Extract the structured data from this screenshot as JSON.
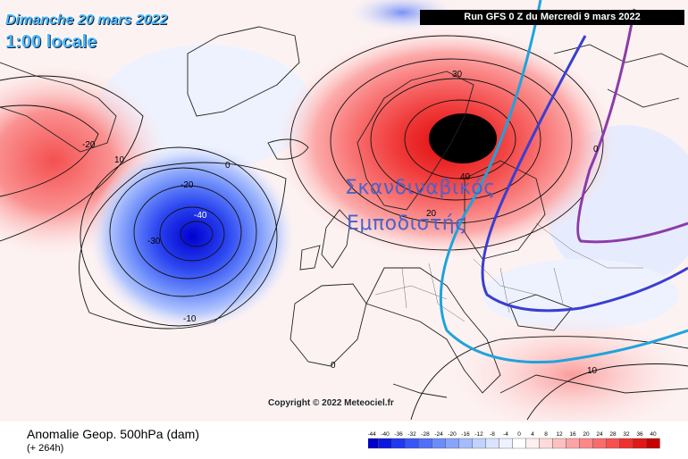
{
  "header": {
    "date_line": "Dimanche 20 mars 2022",
    "local_time": "1:00 locale",
    "run_info": "Run GFS 0 Z du Mercredi 9 mars 2022"
  },
  "annotation": {
    "line1": "Σκανδιναβικός",
    "line2": "Εμποδιστής"
  },
  "copyright": "Copyright © 2022 Meteociel.fr",
  "footer": {
    "field_title": "Anomalie Geop. 500hPa (dam)",
    "lead_time": "(+ 264h)"
  },
  "contour_labels": [
    "-20",
    "10",
    "0",
    "-20",
    "-40",
    "-30",
    "-10",
    "30",
    "40",
    "20",
    "0",
    "0",
    "10"
  ],
  "legend": {
    "ticks": [
      "-44",
      "-40",
      "-36",
      "-32",
      "-28",
      "-24",
      "-20",
      "-16",
      "-12",
      "-8",
      "-4",
      "0",
      "4",
      "8",
      "12",
      "16",
      "20",
      "24",
      "28",
      "32",
      "36",
      "40"
    ],
    "colors": [
      "#0000c8",
      "#0c18e0",
      "#2038f0",
      "#3856f6",
      "#5070f8",
      "#6c8cfa",
      "#88a4fb",
      "#a4bcfc",
      "#c0d2fd",
      "#dae4fe",
      "#eef2fe",
      "#ffffff",
      "#fff0f0",
      "#fedada",
      "#fdc0c0",
      "#fca4a4",
      "#fb8888",
      "#fa6c6c",
      "#f85050",
      "#f03030",
      "#e01818",
      "#c80000"
    ]
  },
  "colors": {
    "stream_cyan": "#1fa3dc",
    "stream_blue": "#3a3ed0",
    "stream_purple": "#8c3ba8",
    "date_text": "#4db7ff",
    "annotation_text": "#4a63c9"
  }
}
